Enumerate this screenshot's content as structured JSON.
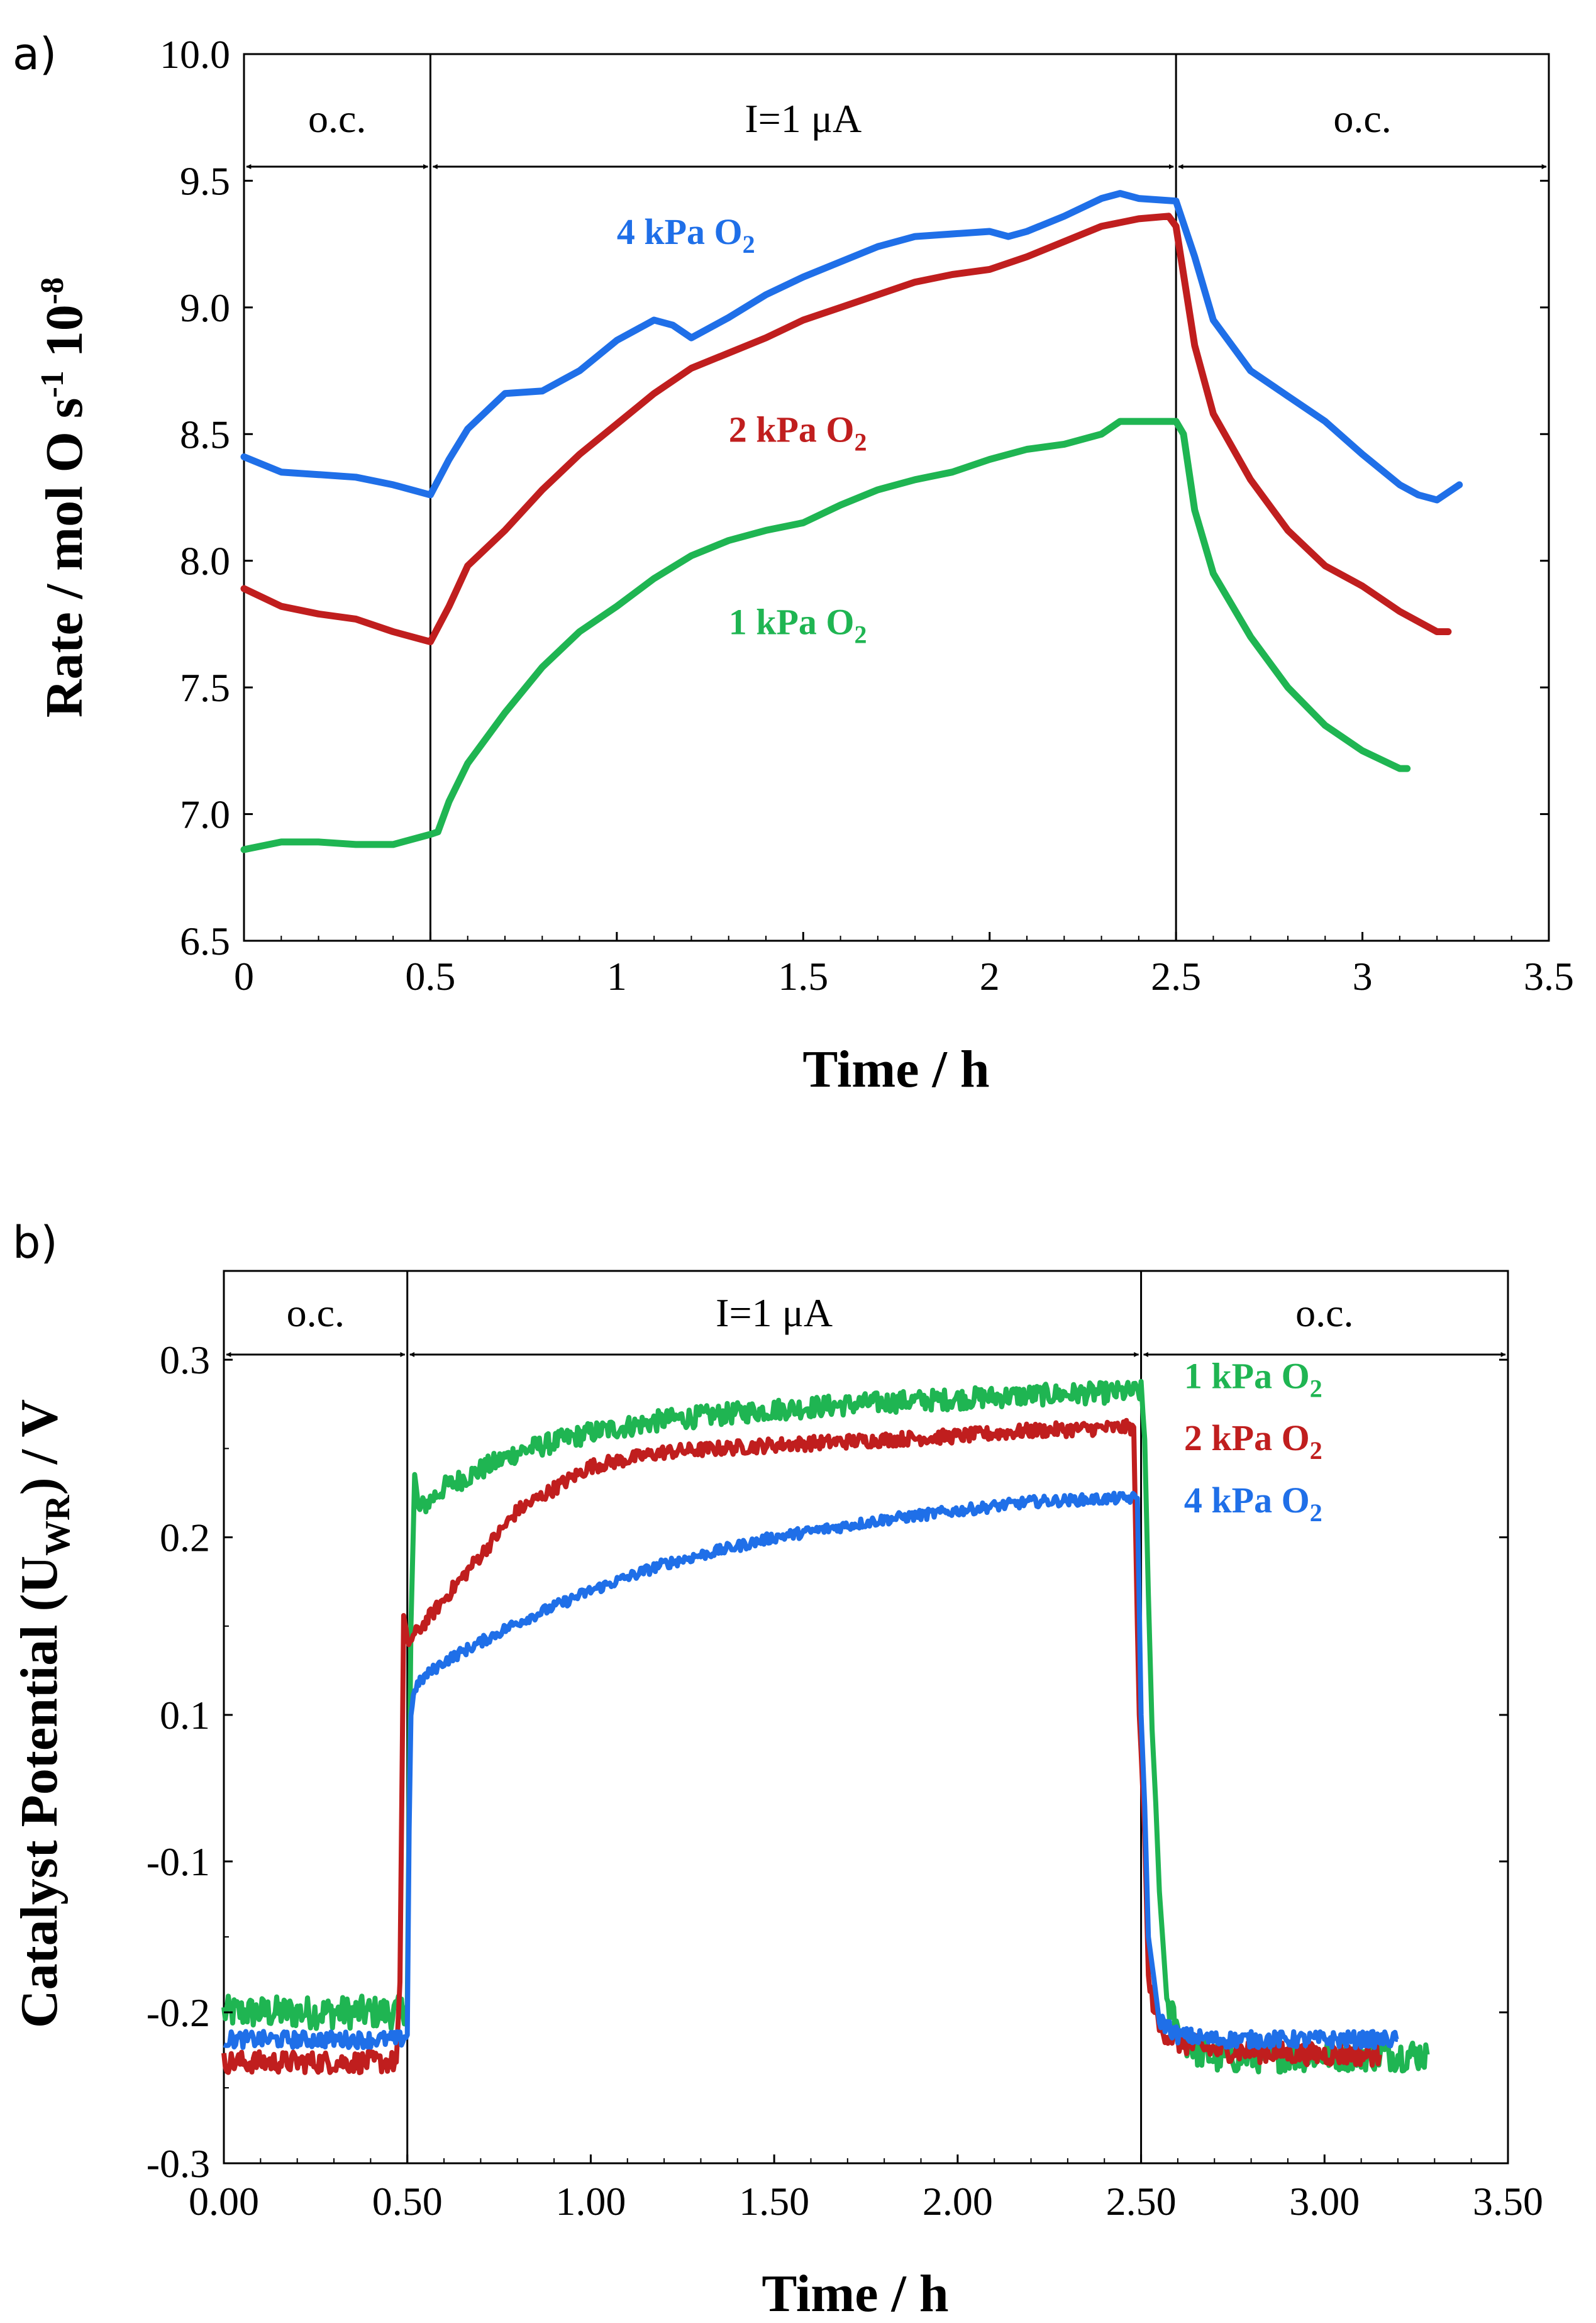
{
  "chart_data": [
    {
      "panel": "a)",
      "type": "line",
      "xlabel": "Time / h",
      "ylabel": "Rate / mol O s",
      "ylabel_sup1": "-1",
      "ylabel_mid": " 10",
      "ylabel_sup2": "-8",
      "xlim": [
        0,
        3.5
      ],
      "ylim": [
        6.5,
        10.0
      ],
      "xticks": [
        0,
        0.5,
        1,
        1.5,
        2,
        2.5,
        3,
        3.5
      ],
      "xtick_labels": [
        "0",
        "0.5",
        "1",
        "1.5",
        "2",
        "2.5",
        "3",
        "3.5"
      ],
      "yticks": [
        6.5,
        7.0,
        7.5,
        8.0,
        8.5,
        9.0,
        9.5,
        10.0
      ],
      "ytick_labels": [
        "6.5",
        "7.0",
        "7.5",
        "8.0",
        "8.5",
        "9.0",
        "9.5",
        "10.0"
      ],
      "phase_lines": [
        0.5,
        2.5
      ],
      "phases": [
        {
          "label": "o.c.",
          "from": 0,
          "to": 0.5
        },
        {
          "label": "I=1 μA",
          "from": 0.5,
          "to": 2.5
        },
        {
          "label": "o.c.",
          "from": 2.5,
          "to": 3.5
        }
      ],
      "series": [
        {
          "name": "4 kPa O",
          "sub": "2",
          "color": "#1f6fe8",
          "label_at": [
            1.0,
            9.25
          ],
          "x": [
            0,
            0.1,
            0.2,
            0.3,
            0.4,
            0.5,
            0.55,
            0.6,
            0.7,
            0.8,
            0.9,
            1.0,
            1.1,
            1.15,
            1.2,
            1.3,
            1.4,
            1.5,
            1.6,
            1.7,
            1.8,
            1.9,
            2.0,
            2.05,
            2.1,
            2.2,
            2.3,
            2.35,
            2.4,
            2.5,
            2.55,
            2.6,
            2.7,
            2.8,
            2.9,
            3.0,
            3.1,
            3.15,
            3.2,
            3.26
          ],
          "y": [
            8.41,
            8.35,
            8.34,
            8.33,
            8.3,
            8.26,
            8.4,
            8.52,
            8.66,
            8.67,
            8.75,
            8.87,
            8.95,
            8.93,
            8.88,
            8.96,
            9.05,
            9.12,
            9.18,
            9.24,
            9.28,
            9.29,
            9.3,
            9.28,
            9.3,
            9.36,
            9.43,
            9.45,
            9.43,
            9.42,
            9.2,
            8.95,
            8.75,
            8.65,
            8.55,
            8.42,
            8.3,
            8.26,
            8.24,
            8.3
          ]
        },
        {
          "name": "2 kPa O",
          "sub": "2",
          "color": "#c01e1e",
          "label_at": [
            1.3,
            8.47
          ],
          "x": [
            0,
            0.1,
            0.2,
            0.3,
            0.4,
            0.5,
            0.55,
            0.6,
            0.7,
            0.8,
            0.9,
            1.0,
            1.1,
            1.2,
            1.3,
            1.4,
            1.5,
            1.6,
            1.7,
            1.8,
            1.9,
            2.0,
            2.1,
            2.2,
            2.3,
            2.4,
            2.48,
            2.5,
            2.55,
            2.6,
            2.7,
            2.8,
            2.9,
            3.0,
            3.1,
            3.2,
            3.23
          ],
          "y": [
            7.89,
            7.82,
            7.79,
            7.77,
            7.72,
            7.68,
            7.82,
            7.98,
            8.12,
            8.28,
            8.42,
            8.54,
            8.66,
            8.76,
            8.82,
            8.88,
            8.95,
            9.0,
            9.05,
            9.1,
            9.13,
            9.15,
            9.2,
            9.26,
            9.32,
            9.35,
            9.36,
            9.32,
            8.85,
            8.58,
            8.32,
            8.12,
            7.98,
            7.9,
            7.8,
            7.72,
            7.72
          ]
        },
        {
          "name": "1 kPa O",
          "sub": "2",
          "color": "#1fb552",
          "label_at": [
            1.3,
            7.71
          ],
          "x": [
            0,
            0.1,
            0.2,
            0.3,
            0.4,
            0.5,
            0.52,
            0.55,
            0.6,
            0.7,
            0.8,
            0.9,
            1.0,
            1.1,
            1.2,
            1.3,
            1.4,
            1.5,
            1.6,
            1.7,
            1.8,
            1.9,
            2.0,
            2.1,
            2.2,
            2.3,
            2.35,
            2.4,
            2.5,
            2.52,
            2.55,
            2.6,
            2.7,
            2.8,
            2.9,
            3.0,
            3.1,
            3.12
          ],
          "y": [
            6.86,
            6.89,
            6.89,
            6.88,
            6.88,
            6.92,
            6.93,
            7.05,
            7.2,
            7.4,
            7.58,
            7.72,
            7.82,
            7.93,
            8.02,
            8.08,
            8.12,
            8.15,
            8.22,
            8.28,
            8.32,
            8.35,
            8.4,
            8.44,
            8.46,
            8.5,
            8.55,
            8.55,
            8.55,
            8.5,
            8.2,
            7.95,
            7.7,
            7.5,
            7.35,
            7.25,
            7.18,
            7.18
          ]
        }
      ]
    },
    {
      "panel": "b)",
      "type": "line",
      "xlabel": "Time / h",
      "ylabel": "Catalyst Potential (U",
      "ylabel_sub": "WR",
      "ylabel_end": ") / V",
      "xlim": [
        0,
        3.5
      ],
      "ylim": [
        -0.3,
        0.35
      ],
      "axis_break": {
        "from": -0.1,
        "to": 0.1
      },
      "xticks": [
        0,
        0.5,
        1,
        1.5,
        2,
        2.5,
        3,
        3.5
      ],
      "xtick_labels": [
        "0.00",
        "0.50",
        "1.00",
        "1.50",
        "2.00",
        "2.50",
        "3.00",
        "3.50"
      ],
      "ytick_labels": [
        "-0.3",
        "-0.2",
        "-0.1",
        "0.1",
        "0.2",
        "0.3"
      ],
      "phase_lines": [
        0.5,
        2.5
      ],
      "phases": [
        {
          "label": "o.c.",
          "from": 0,
          "to": 0.5
        },
        {
          "label": "I=1 μA",
          "from": 0.5,
          "to": 2.5
        },
        {
          "label": "o.c.",
          "from": 2.5,
          "to": 3.5
        }
      ],
      "series": [
        {
          "name": "1 kPa O",
          "sub": "2",
          "color": "#1fb552",
          "label_at": [
            2.6,
            0.284
          ],
          "noise": 0.006,
          "x": [
            0,
            0.48,
            0.5,
            0.51,
            0.52,
            0.53,
            0.6,
            0.8,
            1.0,
            1.2,
            1.5,
            1.8,
            2.0,
            2.2,
            2.5,
            2.51,
            2.53,
            2.55,
            2.57,
            2.6,
            2.65,
            2.7,
            3.0,
            3.28
          ],
          "y": [
            -0.2,
            -0.2,
            -0.195,
            0.15,
            0.235,
            0.215,
            0.228,
            0.248,
            0.259,
            0.266,
            0.272,
            0.276,
            0.278,
            0.28,
            0.282,
            0.255,
            0.08,
            -0.12,
            -0.19,
            -0.215,
            -0.225,
            -0.23,
            -0.228,
            -0.228
          ]
        },
        {
          "name": "2 kPa O",
          "sub": "2",
          "color": "#c01e1e",
          "label_at": [
            2.6,
            0.249
          ],
          "noise": 0.004,
          "x": [
            0,
            0.47,
            0.48,
            0.49,
            0.5,
            0.52,
            0.6,
            0.8,
            1.0,
            1.2,
            1.5,
            1.8,
            2.0,
            2.2,
            2.48,
            2.49,
            2.5,
            2.52,
            2.55,
            2.6,
            2.7,
            3.0,
            3.15
          ],
          "y": [
            -0.233,
            -0.233,
            -0.18,
            0.155,
            0.14,
            0.145,
            0.165,
            0.215,
            0.24,
            0.248,
            0.252,
            0.255,
            0.257,
            0.26,
            0.262,
            0.15,
            0.05,
            -0.18,
            -0.21,
            -0.22,
            -0.225,
            -0.228,
            -0.228
          ]
        },
        {
          "name": "4 kPa O",
          "sub": "2",
          "color": "#1f6fe8",
          "label_at": [
            2.6,
            0.214
          ],
          "noise": 0.003,
          "x": [
            0,
            0.48,
            0.5,
            0.51,
            0.52,
            0.55,
            0.6,
            0.8,
            1.0,
            1.2,
            1.5,
            1.8,
            2.0,
            2.2,
            2.45,
            2.49,
            2.5,
            2.52,
            2.55,
            2.6,
            2.7,
            3.0,
            3.2
          ],
          "y": [
            -0.218,
            -0.218,
            -0.215,
            0.1,
            0.115,
            0.122,
            0.13,
            0.152,
            0.17,
            0.185,
            0.2,
            0.21,
            0.215,
            0.22,
            0.222,
            0.222,
            0.1,
            -0.15,
            -0.205,
            -0.215,
            -0.218,
            -0.218,
            -0.218
          ]
        }
      ]
    }
  ]
}
